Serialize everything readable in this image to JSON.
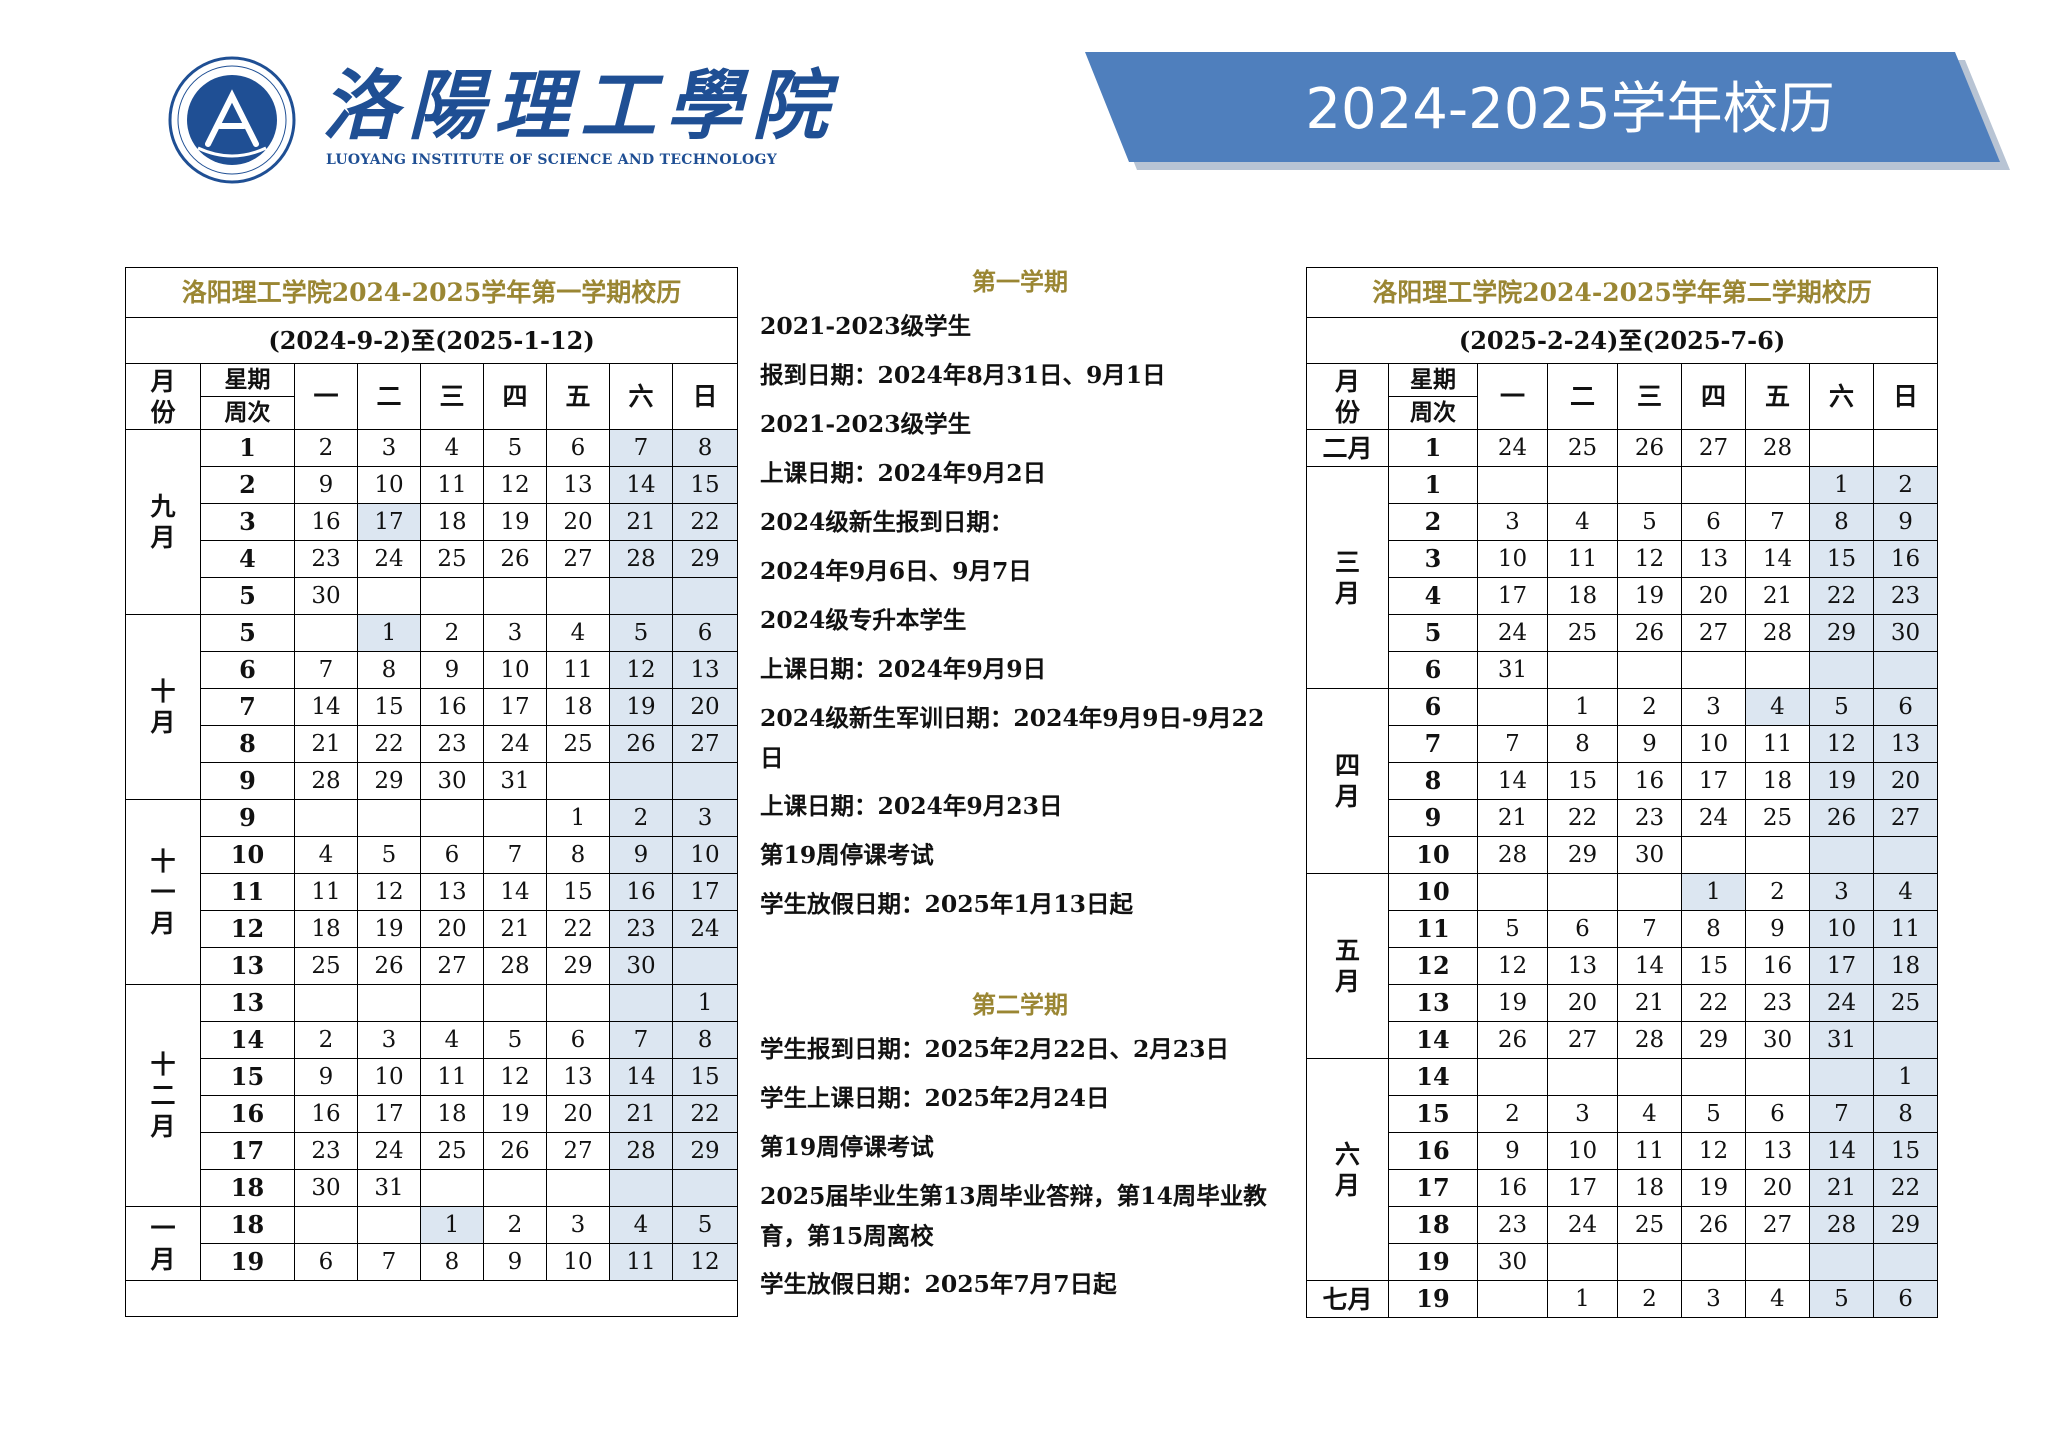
{
  "header": {
    "logo_name": "洛陽理工學院",
    "logo_en": "LUOYANG INSTITUTE OF SCIENCE AND TECHNOLOGY",
    "title": "2024-2025学年校历"
  },
  "colors": {
    "brand": "#1f4f94",
    "banner": "#4f7fbd",
    "title_gold": "#9a8633",
    "weekend_shade": "#dce6f1"
  },
  "semester1": {
    "title": "洛阳理工学院2024-2025学年第一学期校历",
    "range": "(2024-9-2)至(2025-1-12)",
    "month_header": "月份",
    "week_header_top": "星期",
    "week_header_bottom": "周次",
    "days": [
      "一",
      "二",
      "三",
      "四",
      "五",
      "六",
      "日"
    ],
    "months": [
      {
        "name": "九月",
        "rows": [
          {
            "week": "1",
            "days": [
              "2",
              "3",
              "4",
              "5",
              "6",
              "7",
              "8"
            ],
            "shade": [
              5,
              6
            ]
          },
          {
            "week": "2",
            "days": [
              "9",
              "10",
              "11",
              "12",
              "13",
              "14",
              "15"
            ],
            "shade": [
              5,
              6
            ]
          },
          {
            "week": "3",
            "days": [
              "16",
              "17",
              "18",
              "19",
              "20",
              "21",
              "22"
            ],
            "shade": [
              1,
              5,
              6
            ]
          },
          {
            "week": "4",
            "days": [
              "23",
              "24",
              "25",
              "26",
              "27",
              "28",
              "29"
            ],
            "shade": [
              5,
              6
            ]
          },
          {
            "week": "5",
            "days": [
              "30",
              "",
              "",
              "",
              "",
              "",
              ""
            ],
            "shade": [
              5,
              6
            ]
          }
        ]
      },
      {
        "name": "十月",
        "rows": [
          {
            "week": "5",
            "days": [
              "",
              "1",
              "2",
              "3",
              "4",
              "5",
              "6"
            ],
            "shade": [
              1,
              5,
              6
            ]
          },
          {
            "week": "6",
            "days": [
              "7",
              "8",
              "9",
              "10",
              "11",
              "12",
              "13"
            ],
            "shade": [
              5,
              6
            ]
          },
          {
            "week": "7",
            "days": [
              "14",
              "15",
              "16",
              "17",
              "18",
              "19",
              "20"
            ],
            "shade": [
              5,
              6
            ]
          },
          {
            "week": "8",
            "days": [
              "21",
              "22",
              "23",
              "24",
              "25",
              "26",
              "27"
            ],
            "shade": [
              5,
              6
            ]
          },
          {
            "week": "9",
            "days": [
              "28",
              "29",
              "30",
              "31",
              "",
              "",
              ""
            ],
            "shade": [
              5,
              6
            ]
          }
        ]
      },
      {
        "name": "十一月",
        "rows": [
          {
            "week": "9",
            "days": [
              "",
              "",
              "",
              "",
              "1",
              "2",
              "3"
            ],
            "shade": [
              5,
              6
            ]
          },
          {
            "week": "10",
            "days": [
              "4",
              "5",
              "6",
              "7",
              "8",
              "9",
              "10"
            ],
            "shade": [
              5,
              6
            ]
          },
          {
            "week": "11",
            "days": [
              "11",
              "12",
              "13",
              "14",
              "15",
              "16",
              "17"
            ],
            "shade": [
              5,
              6
            ]
          },
          {
            "week": "12",
            "days": [
              "18",
              "19",
              "20",
              "21",
              "22",
              "23",
              "24"
            ],
            "shade": [
              5,
              6
            ]
          },
          {
            "week": "13",
            "days": [
              "25",
              "26",
              "27",
              "28",
              "29",
              "30",
              ""
            ],
            "shade": [
              5,
              6
            ]
          }
        ]
      },
      {
        "name": "十二月",
        "rows": [
          {
            "week": "13",
            "days": [
              "",
              "",
              "",
              "",
              "",
              "",
              "1"
            ],
            "shade": [
              5,
              6
            ]
          },
          {
            "week": "14",
            "days": [
              "2",
              "3",
              "4",
              "5",
              "6",
              "7",
              "8"
            ],
            "shade": [
              5,
              6
            ]
          },
          {
            "week": "15",
            "days": [
              "9",
              "10",
              "11",
              "12",
              "13",
              "14",
              "15"
            ],
            "shade": [
              5,
              6
            ]
          },
          {
            "week": "16",
            "days": [
              "16",
              "17",
              "18",
              "19",
              "20",
              "21",
              "22"
            ],
            "shade": [
              5,
              6
            ]
          },
          {
            "week": "17",
            "days": [
              "23",
              "24",
              "25",
              "26",
              "27",
              "28",
              "29"
            ],
            "shade": [
              5,
              6
            ]
          },
          {
            "week": "18",
            "days": [
              "30",
              "31",
              "",
              "",
              "",
              "",
              ""
            ],
            "shade": [
              5,
              6
            ]
          }
        ]
      },
      {
        "name": "一月",
        "rows": [
          {
            "week": "18",
            "days": [
              "",
              "",
              "1",
              "2",
              "3",
              "4",
              "5"
            ],
            "shade": [
              2,
              5,
              6
            ]
          },
          {
            "week": "19",
            "days": [
              "6",
              "7",
              "8",
              "9",
              "10",
              "11",
              "12"
            ],
            "shade": [
              5,
              6
            ]
          }
        ]
      }
    ]
  },
  "semester2": {
    "title": "洛阳理工学院2024-2025学年第二学期校历",
    "range": "(2025-2-24)至(2025-7-6)",
    "month_header": "月份",
    "week_header_top": "星期",
    "week_header_bottom": "周次",
    "days": [
      "一",
      "二",
      "三",
      "四",
      "五",
      "六",
      "日"
    ],
    "months": [
      {
        "name": "二月",
        "rows": [
          {
            "week": "1",
            "days": [
              "24",
              "25",
              "26",
              "27",
              "28",
              "",
              ""
            ],
            "shade": []
          }
        ]
      },
      {
        "name": "三月",
        "rows": [
          {
            "week": "1",
            "days": [
              "",
              "",
              "",
              "",
              "",
              "1",
              "2"
            ],
            "shade": [
              5,
              6
            ]
          },
          {
            "week": "2",
            "days": [
              "3",
              "4",
              "5",
              "6",
              "7",
              "8",
              "9"
            ],
            "shade": [
              5,
              6
            ]
          },
          {
            "week": "3",
            "days": [
              "10",
              "11",
              "12",
              "13",
              "14",
              "15",
              "16"
            ],
            "shade": [
              5,
              6
            ]
          },
          {
            "week": "4",
            "days": [
              "17",
              "18",
              "19",
              "20",
              "21",
              "22",
              "23"
            ],
            "shade": [
              5,
              6
            ]
          },
          {
            "week": "5",
            "days": [
              "24",
              "25",
              "26",
              "27",
              "28",
              "29",
              "30"
            ],
            "shade": [
              5,
              6
            ]
          },
          {
            "week": "6",
            "days": [
              "31",
              "",
              "",
              "",
              "",
              "",
              ""
            ],
            "shade": [
              5,
              6
            ]
          }
        ]
      },
      {
        "name": "四月",
        "rows": [
          {
            "week": "6",
            "days": [
              "",
              "1",
              "2",
              "3",
              "4",
              "5",
              "6"
            ],
            "shade": [
              4,
              5,
              6
            ]
          },
          {
            "week": "7",
            "days": [
              "7",
              "8",
              "9",
              "10",
              "11",
              "12",
              "13"
            ],
            "shade": [
              5,
              6
            ]
          },
          {
            "week": "8",
            "days": [
              "14",
              "15",
              "16",
              "17",
              "18",
              "19",
              "20"
            ],
            "shade": [
              5,
              6
            ]
          },
          {
            "week": "9",
            "days": [
              "21",
              "22",
              "23",
              "24",
              "25",
              "26",
              "27"
            ],
            "shade": [
              5,
              6
            ]
          },
          {
            "week": "10",
            "days": [
              "28",
              "29",
              "30",
              "",
              "",
              "",
              ""
            ],
            "shade": [
              5,
              6
            ]
          }
        ]
      },
      {
        "name": "五月",
        "rows": [
          {
            "week": "10",
            "days": [
              "",
              "",
              "",
              "1",
              "2",
              "3",
              "4"
            ],
            "shade": [
              3,
              5,
              6
            ]
          },
          {
            "week": "11",
            "days": [
              "5",
              "6",
              "7",
              "8",
              "9",
              "10",
              "11"
            ],
            "shade": [
              5,
              6
            ]
          },
          {
            "week": "12",
            "days": [
              "12",
              "13",
              "14",
              "15",
              "16",
              "17",
              "18"
            ],
            "shade": [
              5,
              6
            ]
          },
          {
            "week": "13",
            "days": [
              "19",
              "20",
              "21",
              "22",
              "23",
              "24",
              "25"
            ],
            "shade": [
              5,
              6
            ]
          },
          {
            "week": "14",
            "days": [
              "26",
              "27",
              "28",
              "29",
              "30",
              "31",
              ""
            ],
            "shade": [
              5,
              6
            ]
          }
        ]
      },
      {
        "name": "六月",
        "rows": [
          {
            "week": "14",
            "days": [
              "",
              "",
              "",
              "",
              "",
              "",
              "1"
            ],
            "shade": [
              5,
              6
            ]
          },
          {
            "week": "15",
            "days": [
              "2",
              "3",
              "4",
              "5",
              "6",
              "7",
              "8"
            ],
            "shade": [
              5,
              6
            ]
          },
          {
            "week": "16",
            "days": [
              "9",
              "10",
              "11",
              "12",
              "13",
              "14",
              "15"
            ],
            "shade": [
              5,
              6
            ]
          },
          {
            "week": "17",
            "days": [
              "16",
              "17",
              "18",
              "19",
              "20",
              "21",
              "22"
            ],
            "shade": [
              5,
              6
            ]
          },
          {
            "week": "18",
            "days": [
              "23",
              "24",
              "25",
              "26",
              "27",
              "28",
              "29"
            ],
            "shade": [
              5,
              6
            ]
          },
          {
            "week": "19",
            "days": [
              "30",
              "",
              "",
              "",
              "",
              "",
              ""
            ],
            "shade": [
              5,
              6
            ]
          }
        ]
      },
      {
        "name": "七月",
        "rows": [
          {
            "week": "19",
            "days": [
              "",
              "1",
              "2",
              "3",
              "4",
              "5",
              "6"
            ],
            "shade": [
              5,
              6
            ]
          }
        ]
      }
    ]
  },
  "notes": {
    "sem1_heading": "第一学期",
    "sem1_lines": [
      "2021-2023级学生",
      "报到日期：2024年8月31日、9月1日",
      "2021-2023级学生",
      "上课日期：2024年9月2日",
      "2024级新生报到日期：",
      "2024年9月6日、9月7日",
      "2024级专升本学生",
      "上课日期：2024年9月9日",
      "2024级新生军训日期：2024年9月9日-9月22日",
      "上课日期：2024年9月23日",
      "第19周停课考试",
      "学生放假日期：2025年1月13日起"
    ],
    "sem2_heading": "第二学期",
    "sem2_lines": [
      "学生报到日期：2025年2月22日、2月23日",
      "学生上课日期：2025年2月24日",
      "第19周停课考试",
      "2025届毕业生第13周毕业答辩，第14周毕业教育，第15周离校",
      "学生放假日期：2025年7月7日起"
    ]
  }
}
